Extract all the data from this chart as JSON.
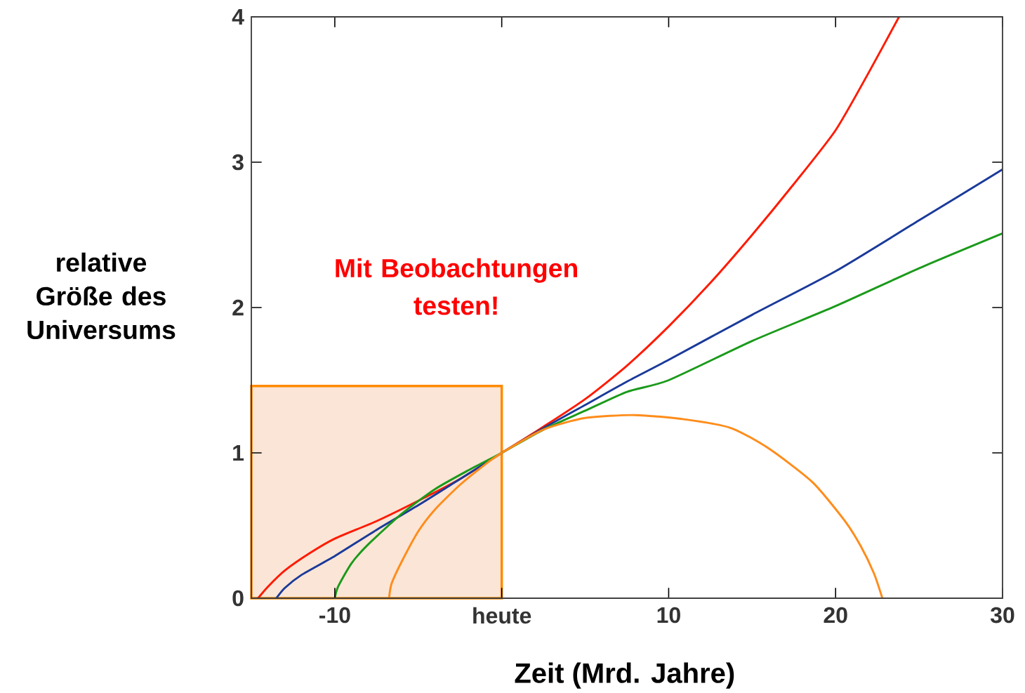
{
  "chart_data": {
    "type": "line",
    "xlabel": "Zeit (Mrd. Jahre)",
    "ylabel": "relative Größe des Universums",
    "annotations": [
      "Mit Beobachtungen testen!"
    ],
    "xlim": [
      -15,
      30
    ],
    "ylim": [
      0,
      4
    ],
    "xticks": [
      -10,
      {
        "value": 0,
        "label": "heute"
      },
      10,
      20,
      30
    ],
    "yticks": [
      0,
      1,
      2,
      3,
      4
    ],
    "bands": [
      {
        "axis": "x",
        "from": -15,
        "to": 0,
        "color": "#fbe5d6"
      }
    ],
    "series": [
      {
        "color": "#ff1a00",
        "x": [
          -14.6,
          -14,
          -13,
          -11.5,
          -10,
          -7.5,
          -5,
          -2.5,
          0,
          2.5,
          5,
          7.5,
          10,
          12.5,
          15,
          17.5,
          20,
          22,
          23.8
        ],
        "values": [
          0,
          0.08,
          0.19,
          0.31,
          0.41,
          0.53,
          0.67,
          0.82,
          1,
          1.18,
          1.37,
          1.6,
          1.87,
          2.17,
          2.5,
          2.85,
          3.22,
          3.62,
          4
        ]
      },
      {
        "color": "#1a3a9a",
        "x": [
          -13.5,
          -13,
          -12,
          -10,
          -7.5,
          -5,
          -2.5,
          0,
          2.5,
          5,
          7.5,
          10,
          15,
          20,
          25,
          30
        ],
        "values": [
          0,
          0.07,
          0.16,
          0.29,
          0.47,
          0.64,
          0.82,
          1,
          1.17,
          1.33,
          1.49,
          1.64,
          1.95,
          2.25,
          2.6,
          2.95
        ]
      },
      {
        "color": "#1a9a1a",
        "x": [
          -10,
          -9.8,
          -9,
          -8,
          -6,
          -4,
          -2,
          0,
          2.5,
          5,
          7.5,
          10,
          15,
          20,
          25,
          30
        ],
        "values": [
          0,
          0.08,
          0.24,
          0.37,
          0.58,
          0.75,
          0.88,
          1,
          1.16,
          1.29,
          1.42,
          1.5,
          1.77,
          2.01,
          2.27,
          2.51
        ]
      },
      {
        "color": "#ff8c1a",
        "x": [
          -6.75,
          -6.6,
          -6,
          -5,
          -4,
          -2.5,
          -1,
          0,
          2.5,
          5,
          8,
          11,
          13.75,
          16,
          18.6,
          20.5,
          21.5,
          22.3,
          22.8
        ],
        "values": [
          0,
          0.1,
          0.25,
          0.46,
          0.61,
          0.78,
          0.92,
          1,
          1.16,
          1.24,
          1.26,
          1.23,
          1.17,
          1.03,
          0.8,
          0.54,
          0.36,
          0.17,
          0
        ]
      }
    ]
  }
}
